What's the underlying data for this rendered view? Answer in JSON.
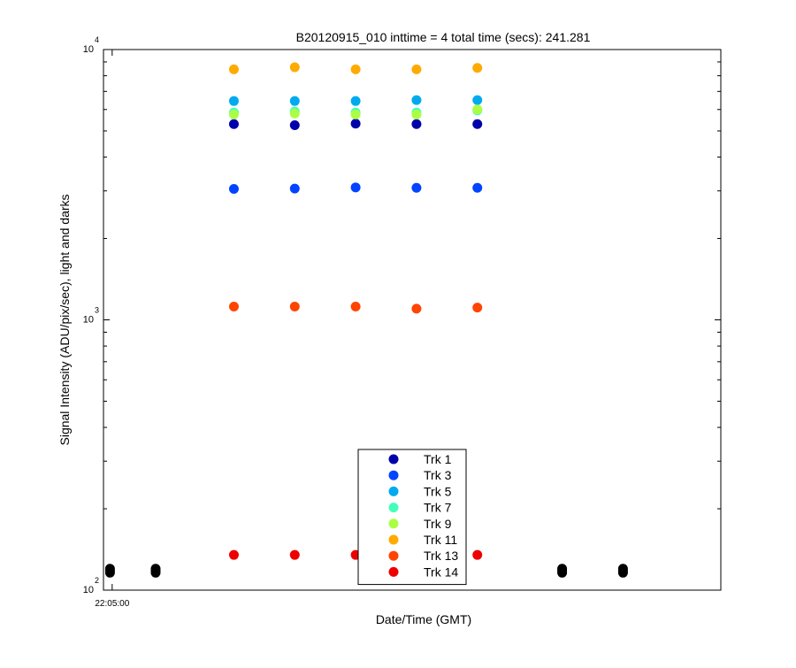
{
  "chart_data": {
    "type": "scatter",
    "title": "B20120915_010 inttime = 4 total time (secs): 241.281",
    "xlabel": "Date/Time (GMT)",
    "ylabel": "Signal Intensity (ADU/pix/sec), light and darks",
    "y_scale": "log",
    "ylim": [
      100,
      10000
    ],
    "xlim": [
      "22:04:56",
      "22:09:40"
    ],
    "x_ticks": [
      "22:05:00"
    ],
    "y_ticks": [
      {
        "base": "10",
        "exp": "2"
      },
      {
        "base": "10",
        "exp": "3"
      },
      {
        "base": "10",
        "exp": "4"
      }
    ],
    "grid": false,
    "legend_position": "bottom-center",
    "series": [
      {
        "name": "Trk 1",
        "color": "#0000aa",
        "x": [
          "22:05:56",
          "22:06:24",
          "22:06:52",
          "22:07:20",
          "22:07:48"
        ],
        "y": [
          5300,
          5250,
          5320,
          5300,
          5300
        ]
      },
      {
        "name": "Trk 3",
        "color": "#0044ff",
        "x": [
          "22:05:56",
          "22:06:24",
          "22:06:52",
          "22:07:20",
          "22:07:48"
        ],
        "y": [
          3050,
          3060,
          3090,
          3080,
          3080
        ]
      },
      {
        "name": "Trk 5",
        "color": "#00aaee",
        "x": [
          "22:05:56",
          "22:06:24",
          "22:06:52",
          "22:07:20",
          "22:07:48"
        ],
        "y": [
          6450,
          6450,
          6450,
          6500,
          6500
        ]
      },
      {
        "name": "Trk 7",
        "color": "#44ffbb",
        "x": [
          "22:05:56",
          "22:06:24",
          "22:06:52",
          "22:07:20",
          "22:07:48"
        ],
        "y": [
          5850,
          5900,
          5850,
          5850,
          5950
        ]
      },
      {
        "name": "Trk 9",
        "color": "#aaff44",
        "x": [
          "22:05:56",
          "22:06:24",
          "22:06:52",
          "22:07:20",
          "22:07:48"
        ],
        "y": [
          5750,
          5800,
          5750,
          5750,
          6000
        ]
      },
      {
        "name": "Trk 11",
        "color": "#ffaa00",
        "x": [
          "22:05:56",
          "22:06:24",
          "22:06:52",
          "22:07:20",
          "22:07:48"
        ],
        "y": [
          8450,
          8600,
          8450,
          8450,
          8550
        ]
      },
      {
        "name": "Trk 13",
        "color": "#ff4400",
        "x": [
          "22:05:56",
          "22:06:24",
          "22:06:52",
          "22:07:20",
          "22:07:48"
        ],
        "y": [
          1120,
          1120,
          1120,
          1100,
          1110
        ]
      },
      {
        "name": "Trk 14",
        "color": "#ee0000",
        "x": [
          "22:05:56",
          "22:06:24",
          "22:06:52",
          "22:07:20",
          "22:07:48"
        ],
        "y": [
          135,
          135,
          135,
          135,
          135
        ]
      }
    ],
    "dark_points": {
      "color": "#000000",
      "x": [
        "22:04:59",
        "22:04:59",
        "22:04:59",
        "22:05:20",
        "22:05:20",
        "22:05:20",
        "22:08:27",
        "22:08:27",
        "22:08:27",
        "22:08:55",
        "22:08:55",
        "22:08:55"
      ],
      "y": [
        116,
        118,
        120,
        116,
        118,
        120,
        116,
        118,
        120,
        116,
        118,
        120
      ]
    }
  }
}
